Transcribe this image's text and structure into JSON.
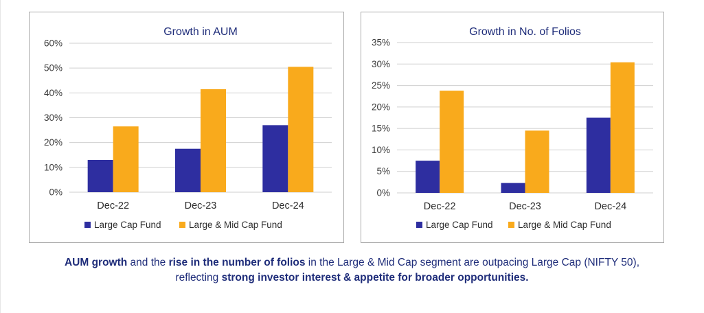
{
  "colors": {
    "large_cap": "#2e2ea0",
    "large_mid_cap": "#f9aa1c",
    "grid": "#cfcfcf",
    "text_blue": "#1f2d7a"
  },
  "chart_data": [
    {
      "type": "bar",
      "title": "Growth in AUM",
      "categories": [
        "Dec-22",
        "Dec-23",
        "Dec-24"
      ],
      "series": [
        {
          "name": "Large Cap Fund",
          "values": [
            13,
            17.5,
            27
          ]
        },
        {
          "name": "Large & Mid Cap Fund",
          "values": [
            26.5,
            41.5,
            50.5
          ]
        }
      ],
      "ylim": [
        0,
        60
      ],
      "yticks": [
        "0%",
        "10%",
        "20%",
        "30%",
        "40%",
        "50%",
        "60%"
      ],
      "grid": true,
      "legend": "bottom"
    },
    {
      "type": "bar",
      "title": "Growth in No. of Folios",
      "categories": [
        "Dec-22",
        "Dec-23",
        "Dec-24"
      ],
      "series": [
        {
          "name": "Large Cap Fund",
          "values": [
            7.5,
            2.3,
            17.5
          ]
        },
        {
          "name": "Large & Mid Cap Fund",
          "values": [
            23.8,
            14.5,
            30.4
          ]
        }
      ],
      "ylim": [
        0,
        35
      ],
      "yticks": [
        "0%",
        "5%",
        "10%",
        "15%",
        "20%",
        "25%",
        "30%",
        "35%"
      ],
      "grid": true,
      "legend": "bottom"
    }
  ],
  "caption": {
    "line1": [
      {
        "text": "AUM growth",
        "bold": true
      },
      {
        "text": " and the ",
        "bold": false
      },
      {
        "text": "rise in the number of folios",
        "bold": true
      },
      {
        "text": " in the Large & Mid Cap segment are outpacing Large Cap (NIFTY 50),",
        "bold": false
      }
    ],
    "line2": [
      {
        "text": "reflecting ",
        "bold": false
      },
      {
        "text": "strong investor interest & appetite for broader opportunities.",
        "bold": true
      }
    ]
  }
}
